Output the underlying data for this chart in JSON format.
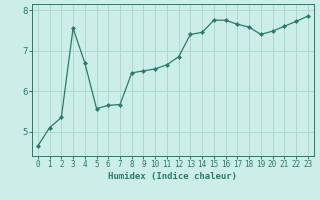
{
  "x": [
    0,
    1,
    2,
    3,
    4,
    5,
    6,
    7,
    8,
    9,
    10,
    11,
    12,
    13,
    14,
    15,
    16,
    17,
    18,
    19,
    20,
    21,
    22,
    23
  ],
  "y": [
    4.65,
    5.1,
    5.35,
    7.55,
    6.7,
    5.57,
    5.65,
    5.67,
    6.45,
    6.5,
    6.55,
    6.65,
    6.85,
    7.4,
    7.45,
    7.75,
    7.75,
    7.65,
    7.58,
    7.4,
    7.48,
    7.6,
    7.72,
    7.85
  ],
  "line_color": "#2d7a6a",
  "marker": "D",
  "marker_size": 2.0,
  "bg_color": "#cceee8",
  "grid_color": "#b0d8d0",
  "xlabel": "Humidex (Indice chaleur)",
  "ylim": [
    4.4,
    8.15
  ],
  "xlim": [
    -0.5,
    23.5
  ],
  "yticks": [
    5,
    6,
    7,
    8
  ],
  "xticks": [
    0,
    1,
    2,
    3,
    4,
    5,
    6,
    7,
    8,
    9,
    10,
    11,
    12,
    13,
    14,
    15,
    16,
    17,
    18,
    19,
    20,
    21,
    22,
    23
  ],
  "tick_color": "#2d7a6a",
  "label_fontsize": 6.5,
  "tick_fontsize": 5.5,
  "ytick_fontsize": 6.5
}
